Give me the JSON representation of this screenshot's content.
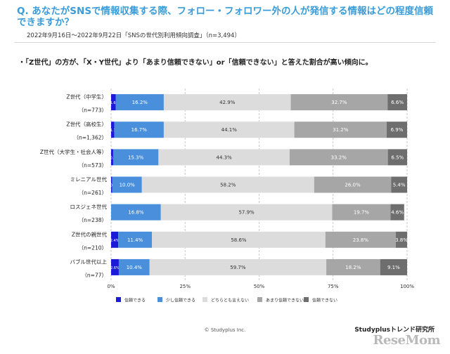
{
  "header": {
    "title": "Q. あなたがSNSで情報収集する際、フォロー・フォロワー外の人が発信する情報はどの程度信頼できますか？",
    "subtitle": "2022年9月16日～2022年9月22日「SNSの世代別利用傾向調査」（n=3,494）",
    "bullet": "・「Z世代」の方が、「X・Y世代」より「あまり信頼できない」or「信頼できない」と答えた割合が高い傾向に。"
  },
  "footer": {
    "copyright": "© Studyplus Inc.",
    "brand": "Studyplusトレンド研究所",
    "logo": "ReseMom"
  },
  "chart_data": {
    "type": "bar",
    "orientation": "horizontal",
    "stacked": true,
    "categories": [
      {
        "name": "Z世代（中学生）",
        "n": "（n=773）"
      },
      {
        "name": "Z世代（高校生）",
        "n": "（n=1,362）"
      },
      {
        "name": "Z世代（大学生・社会人等）",
        "n": "（n=573）"
      },
      {
        "name": "ミレニアル世代",
        "n": "（n=261）"
      },
      {
        "name": "ロスジェネ世代",
        "n": "（n=238）"
      },
      {
        "name": "Z世代の親世代",
        "n": "（n=210）"
      },
      {
        "name": "バブル世代以上",
        "n": "（n=77）"
      }
    ],
    "series": [
      {
        "name": "信頼できる",
        "color": "#1a1ad8",
        "values": [
          1.6,
          1.1,
          0.7,
          0.4,
          0.0,
          2.4,
          2.6
        ],
        "labels": [
          "1.6%",
          "1.1%",
          "0.7%",
          "0.4%",
          "0.0%",
          "2.4%",
          "2.6%"
        ]
      },
      {
        "name": "少し信頼できる",
        "color": "#4a8fdc",
        "values": [
          16.2,
          16.7,
          15.3,
          10.0,
          16.8,
          11.4,
          10.4
        ],
        "labels": [
          "16.2%",
          "16.7%",
          "15.3%",
          "10.0%",
          "16.8%",
          "11.4%",
          "10.4%"
        ]
      },
      {
        "name": "どちらとも言えない",
        "color": "#dcdcdc",
        "values": [
          42.9,
          44.1,
          44.3,
          58.2,
          57.9,
          58.6,
          59.7
        ],
        "labels": [
          "42.9%",
          "44.1%",
          "44.3%",
          "58.2%",
          "57.9%",
          "58.6%",
          "59.7%"
        ]
      },
      {
        "name": "あまり信頼できない",
        "color": "#a6a6a6",
        "values": [
          32.7,
          31.2,
          33.2,
          26.0,
          19.7,
          23.8,
          18.2
        ],
        "labels": [
          "32.7%",
          "31.2%",
          "33.2%",
          "26.0%",
          "19.7%",
          "23.8%",
          "18.2%"
        ]
      },
      {
        "name": "信頼できない",
        "color": "#6e6e6e",
        "values": [
          6.6,
          6.9,
          6.5,
          5.4,
          4.6,
          3.8,
          9.1
        ],
        "labels": [
          "6.6%",
          "6.9%",
          "6.5%",
          "5.4%",
          "4.6%",
          "3.8%",
          "9.1%"
        ]
      }
    ],
    "x_ticks": [
      "0%",
      "25%",
      "50%",
      "75%",
      "100%"
    ],
    "xlim": [
      0,
      100
    ],
    "grid": "vertical dashed",
    "legend": "bottom"
  }
}
